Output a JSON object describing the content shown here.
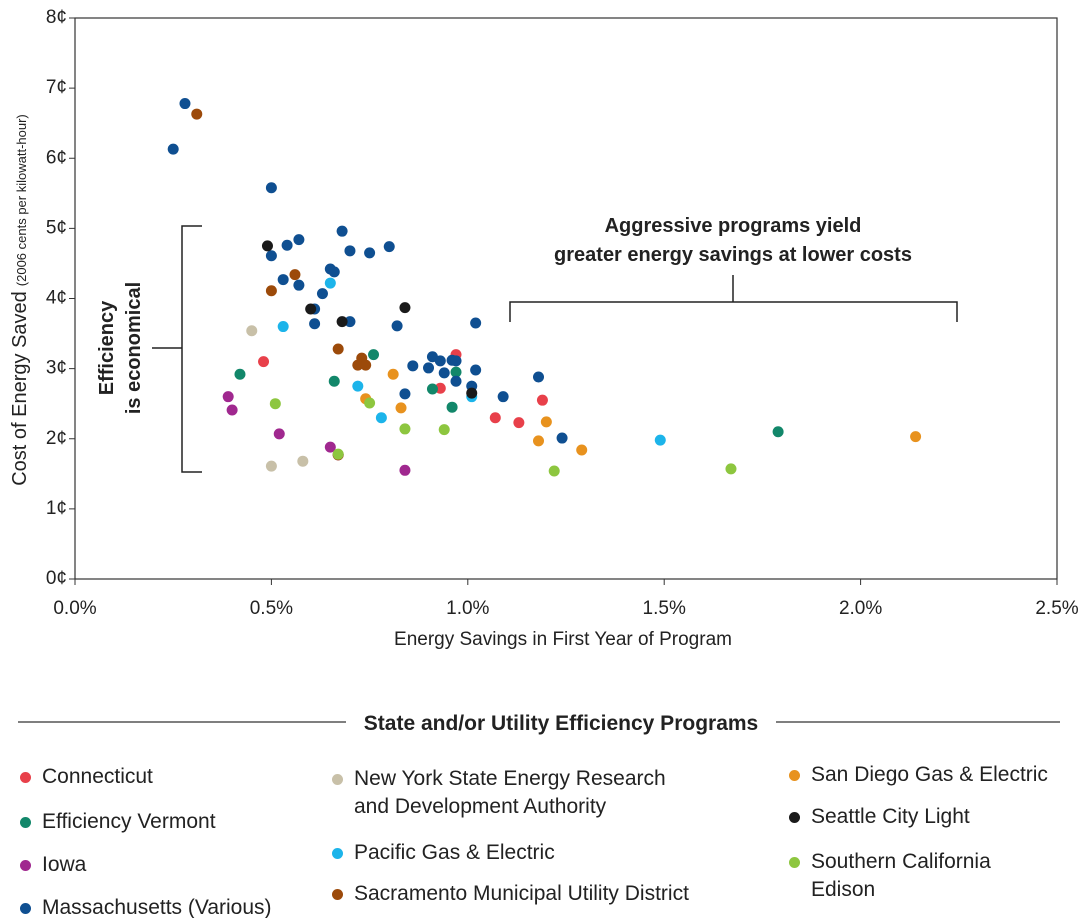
{
  "chart_data": {
    "type": "scatter",
    "x_label": "Energy Savings in First Year of Program",
    "y_label": "Cost of Energy Saved",
    "y_label_note": "(2006 cents per kilowatt-hour)",
    "xlim": [
      0,
      2.5
    ],
    "xticks": [
      {
        "value": 0,
        "label": "0.0%"
      },
      {
        "value": 0.5,
        "label": "0.5%"
      },
      {
        "value": 1.0,
        "label": "1.0%"
      },
      {
        "value": 1.5,
        "label": "1.5%"
      },
      {
        "value": 2.0,
        "label": "2.0%"
      },
      {
        "value": 2.5,
        "label": "2.5%"
      }
    ],
    "ylim": [
      0,
      8
    ],
    "yticks": [
      {
        "value": 0,
        "label": "0¢"
      },
      {
        "value": 1,
        "label": "1¢"
      },
      {
        "value": 2,
        "label": "2¢"
      },
      {
        "value": 3,
        "label": "3¢"
      },
      {
        "value": 4,
        "label": "4¢"
      },
      {
        "value": 5,
        "label": "5¢"
      },
      {
        "value": 6,
        "label": "6¢"
      },
      {
        "value": 7,
        "label": "7¢"
      },
      {
        "value": 8,
        "label": "8¢"
      }
    ],
    "annotations": [
      {
        "lines": [
          "Efficiency",
          "is economical"
        ]
      },
      {
        "lines": [
          "Aggressive programs yield",
          "greater energy savings at lower costs"
        ]
      }
    ],
    "legend_title": "State and/or Utility Efficiency Programs",
    "series": [
      {
        "name": "Connecticut",
        "color": "#e8404a",
        "x": [
          0.48,
          0.97,
          0.93,
          1.07,
          1.13,
          1.19
        ],
        "values": [
          3.1,
          3.2,
          2.72,
          2.3,
          2.23,
          2.55
        ]
      },
      {
        "name": "Efficiency Vermont",
        "color": "#12876a",
        "x": [
          0.42,
          0.66,
          0.76,
          0.91,
          0.96,
          0.97,
          1.79
        ],
        "values": [
          2.92,
          2.82,
          3.2,
          2.71,
          2.45,
          2.95,
          2.1
        ]
      },
      {
        "name": "Iowa",
        "color": "#a0288f",
        "x": [
          0.39,
          0.4,
          0.52,
          0.65,
          0.67,
          0.84
        ],
        "values": [
          2.6,
          2.41,
          2.07,
          1.88,
          1.77,
          1.55
        ]
      },
      {
        "name": "Massachusetts (Various)",
        "color": "#0f4f91",
        "x": [
          0.25,
          0.28,
          0.5,
          0.5,
          0.54,
          0.57,
          0.53,
          0.57,
          0.61,
          0.68,
          0.7,
          0.75,
          0.8,
          0.65,
          0.66,
          0.63,
          0.61,
          0.7,
          0.82,
          0.86,
          0.9,
          0.91,
          0.93,
          0.94,
          0.96,
          0.97,
          0.97,
          1.01,
          1.02,
          1.02,
          1.09,
          1.18,
          1.24,
          0.84
        ],
        "values": [
          6.13,
          6.78,
          5.58,
          4.61,
          4.76,
          4.84,
          4.27,
          4.19,
          3.85,
          4.96,
          4.68,
          4.65,
          4.74,
          4.42,
          4.38,
          4.07,
          3.64,
          3.67,
          3.61,
          3.04,
          3.01,
          3.17,
          3.11,
          2.94,
          3.12,
          3.11,
          2.82,
          2.75,
          2.98,
          3.65,
          2.6,
          2.88,
          2.01,
          2.64
        ]
      },
      {
        "name": "New York State Energy Research and Development Authority",
        "color": "#c8c0a8",
        "x": [
          0.45,
          0.5,
          0.58
        ],
        "values": [
          3.54,
          1.61,
          1.68
        ]
      },
      {
        "name": "Pacific Gas & Electric",
        "color": "#1cb4ea",
        "x": [
          0.53,
          0.65,
          0.72,
          0.78,
          1.01,
          1.49
        ],
        "values": [
          3.6,
          4.22,
          2.75,
          2.3,
          2.6,
          1.98
        ]
      },
      {
        "name": "Sacramento Municipal Utility District",
        "color": "#9c4a0a",
        "x": [
          0.31,
          0.5,
          0.56,
          0.67,
          0.72,
          0.73,
          0.74,
          0.67
        ],
        "values": [
          6.63,
          4.11,
          4.34,
          3.28,
          3.05,
          3.15,
          3.05,
          1.77
        ]
      },
      {
        "name": "San Diego Gas & Electric",
        "color": "#e8921e",
        "x": [
          0.81,
          0.74,
          0.83,
          1.18,
          1.2,
          1.29,
          2.14
        ],
        "values": [
          2.92,
          2.57,
          2.44,
          1.97,
          2.24,
          1.84,
          2.03
        ]
      },
      {
        "name": "Seattle City Light",
        "color": "#1a1a1a",
        "x": [
          0.49,
          0.6,
          0.68,
          0.84,
          1.01
        ],
        "values": [
          4.75,
          3.85,
          3.67,
          3.87,
          2.65
        ]
      },
      {
        "name": "Southern California Edison",
        "color": "#8dc63f",
        "x": [
          0.51,
          0.67,
          0.75,
          0.84,
          0.94,
          1.22,
          1.67
        ],
        "values": [
          2.5,
          1.78,
          2.51,
          2.14,
          2.13,
          1.54,
          1.57
        ]
      }
    ]
  }
}
